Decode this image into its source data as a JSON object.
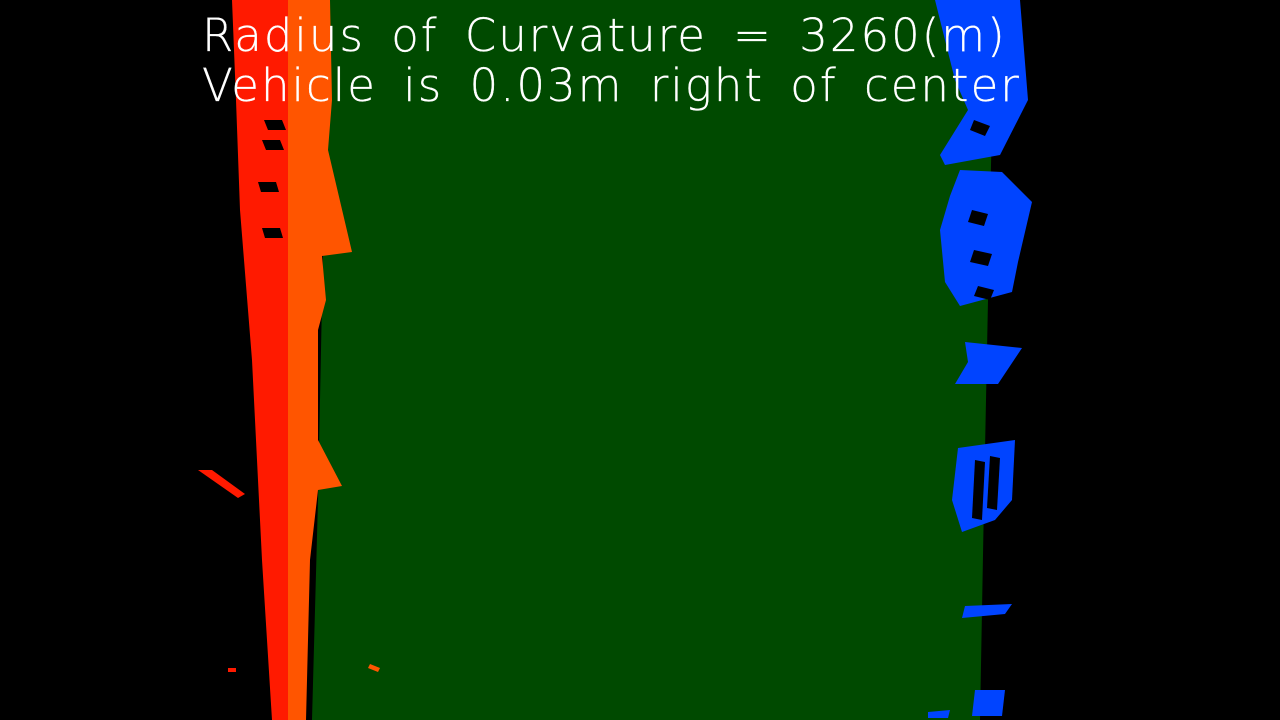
{
  "overlay": {
    "curvature_text": "Radius of Curvature = 3260(m)",
    "offset_text": "Vehicle is 0.03m right of center"
  },
  "colors": {
    "background": "#000000",
    "lane_fill": "#004a00",
    "left_lane_pixels": "#ff1a00",
    "left_fit_band": "#ff5500",
    "right_lane_pixels": "#0044ff",
    "text": "#ffffff"
  }
}
